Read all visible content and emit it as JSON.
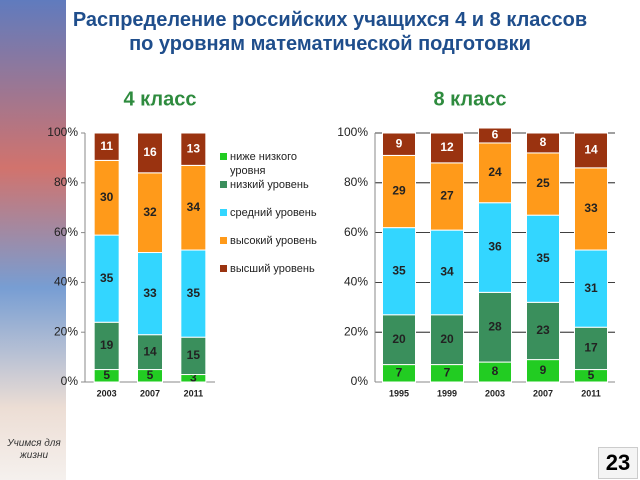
{
  "title": "Распределение российских учащихся 4 и 8 классов по уровням математической подготовки",
  "slide": {
    "logo_text": "Учимся для жизни",
    "page_number": 23
  },
  "chart_data": [
    {
      "type": "bar",
      "stacked": true,
      "subtitle": "4 класс",
      "categories": [
        "2003",
        "2007",
        "2011"
      ],
      "series": [
        {
          "name": "ниже низкого уровня",
          "color": "#22cc22",
          "values": [
            5,
            5,
            3
          ]
        },
        {
          "name": "низкий уровень",
          "color": "#3a8f5c",
          "values": [
            19,
            14,
            15
          ]
        },
        {
          "name": "средний уровень",
          "color": "#33d6ff",
          "values": [
            35,
            33,
            35
          ]
        },
        {
          "name": "высокий уровень",
          "color": "#ff9a1a",
          "values": [
            30,
            32,
            34
          ]
        },
        {
          "name": "высший уровень",
          "color": "#9a3310",
          "values": [
            11,
            16,
            13
          ]
        }
      ],
      "ylim": [
        0,
        100
      ],
      "yticks": [
        {
          "value": 0,
          "label": "0%"
        },
        {
          "value": 20,
          "label": "20%"
        },
        {
          "value": 40,
          "label": "40%"
        },
        {
          "value": 60,
          "label": "60%"
        },
        {
          "value": 80,
          "label": "80%"
        },
        {
          "value": 100,
          "label": "100%"
        }
      ],
      "grid": false,
      "legend": "right"
    },
    {
      "type": "bar",
      "stacked": true,
      "subtitle": "8 класс",
      "categories": [
        "1995",
        "1999",
        "2003",
        "2007",
        "2011"
      ],
      "series": [
        {
          "color": "#22cc22",
          "values": [
            7,
            7,
            8,
            9,
            5
          ]
        },
        {
          "color": "#3a8f5c",
          "values": [
            20,
            20,
            28,
            23,
            17
          ]
        },
        {
          "color": "#33d6ff",
          "values": [
            35,
            34,
            36,
            35,
            31
          ]
        },
        {
          "color": "#ff9a1a",
          "values": [
            29,
            27,
            24,
            25,
            33
          ]
        },
        {
          "color": "#9a3310",
          "values": [
            9,
            12,
            6,
            8,
            14
          ]
        }
      ],
      "ylim": [
        0,
        100
      ],
      "yticks": [
        {
          "value": 0,
          "label": "0%"
        },
        {
          "value": 20,
          "label": "20%"
        },
        {
          "value": 40,
          "label": "40%"
        },
        {
          "value": 60,
          "label": "60%"
        },
        {
          "value": 80,
          "label": "80%"
        },
        {
          "value": 100,
          "label": "100%"
        }
      ],
      "grid": true
    }
  ]
}
